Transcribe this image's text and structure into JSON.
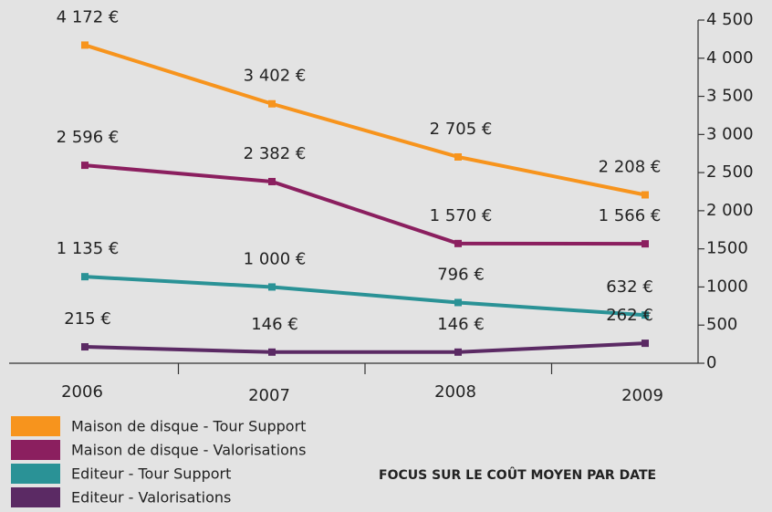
{
  "chart_data": {
    "type": "line",
    "title": "FOCUS SUR LE COÛT MOYEN PAR DATE",
    "categories": [
      "2006",
      "2007",
      "2008",
      "2009"
    ],
    "series": [
      {
        "name": "Maison de disque - Tour Support",
        "color": "#f7941d",
        "values": [
          4172,
          3402,
          2705,
          2208
        ],
        "value_labels": [
          "4 172 €",
          "3 402 €",
          "2 705 €",
          "2 208 €"
        ]
      },
      {
        "name": "Maison de disque - Valorisations",
        "color": "#8b1f5f",
        "values": [
          2596,
          2382,
          1570,
          1566
        ],
        "value_labels": [
          "2 596 €",
          "2 382 €",
          "1 570 €",
          "1 566 €"
        ]
      },
      {
        "name": "Editeur - Tour Support",
        "color": "#2a9296",
        "values": [
          1135,
          1000,
          796,
          632
        ],
        "value_labels": [
          "1 135 €",
          "1 000 €",
          "796 €",
          "632 €"
        ]
      },
      {
        "name": "Editeur - Valorisations",
        "color": "#5b2a64",
        "values": [
          215,
          146,
          146,
          262
        ],
        "value_labels": [
          "215 €",
          "146 €",
          "146 €",
          "262 €"
        ]
      }
    ],
    "ylim": [
      0,
      4500
    ],
    "yticks": [
      0,
      500,
      1000,
      1500,
      {
        "value": 2000,
        "label": "2 000"
      },
      {
        "value": 2500,
        "label": "2 500"
      },
      {
        "value": 3000,
        "label": "3 000"
      },
      {
        "value": 3500,
        "label": "3 500"
      },
      {
        "value": 4000,
        "label": "4 000"
      },
      {
        "value": 4500,
        "label": "4 500"
      }
    ],
    "y_axis_side": "right"
  }
}
